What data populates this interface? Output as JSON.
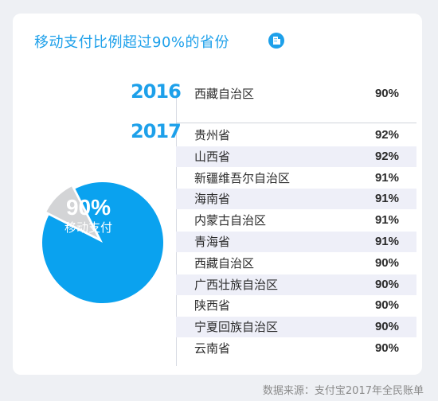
{
  "title": "移动支付比例超过90%的省份",
  "pie": {
    "value": "90%",
    "label": "移动支付",
    "share": 0.9,
    "main_color": "#0aa2ef",
    "slice_color": "#d3d4d6"
  },
  "chart_data": {
    "type": "table",
    "title": "移动支付比例超过90%的省份",
    "groups": [
      {
        "year": "2016",
        "rows": [
          {
            "province": "西藏自治区",
            "value": "90%"
          }
        ]
      },
      {
        "year": "2017",
        "rows": [
          {
            "province": "贵州省",
            "value": "92%"
          },
          {
            "province": "山西省",
            "value": "92%"
          },
          {
            "province": "新疆维吾尔自治区",
            "value": "91%"
          },
          {
            "province": "海南省",
            "value": "91%"
          },
          {
            "province": "内蒙古自治区",
            "value": "91%"
          },
          {
            "province": "青海省",
            "value": "91%"
          },
          {
            "province": "西藏自治区",
            "value": "90%"
          },
          {
            "province": "广西壮族自治区",
            "value": "90%"
          },
          {
            "province": "陕西省",
            "value": "90%"
          },
          {
            "province": "宁夏回族自治区",
            "value": "90%"
          },
          {
            "province": "云南省",
            "value": "90%"
          }
        ]
      }
    ]
  },
  "source": "数据来源：支付宝2017年全民账单",
  "colors": {
    "accent": "#1da0ea",
    "row_alt": "#eeeff8"
  }
}
